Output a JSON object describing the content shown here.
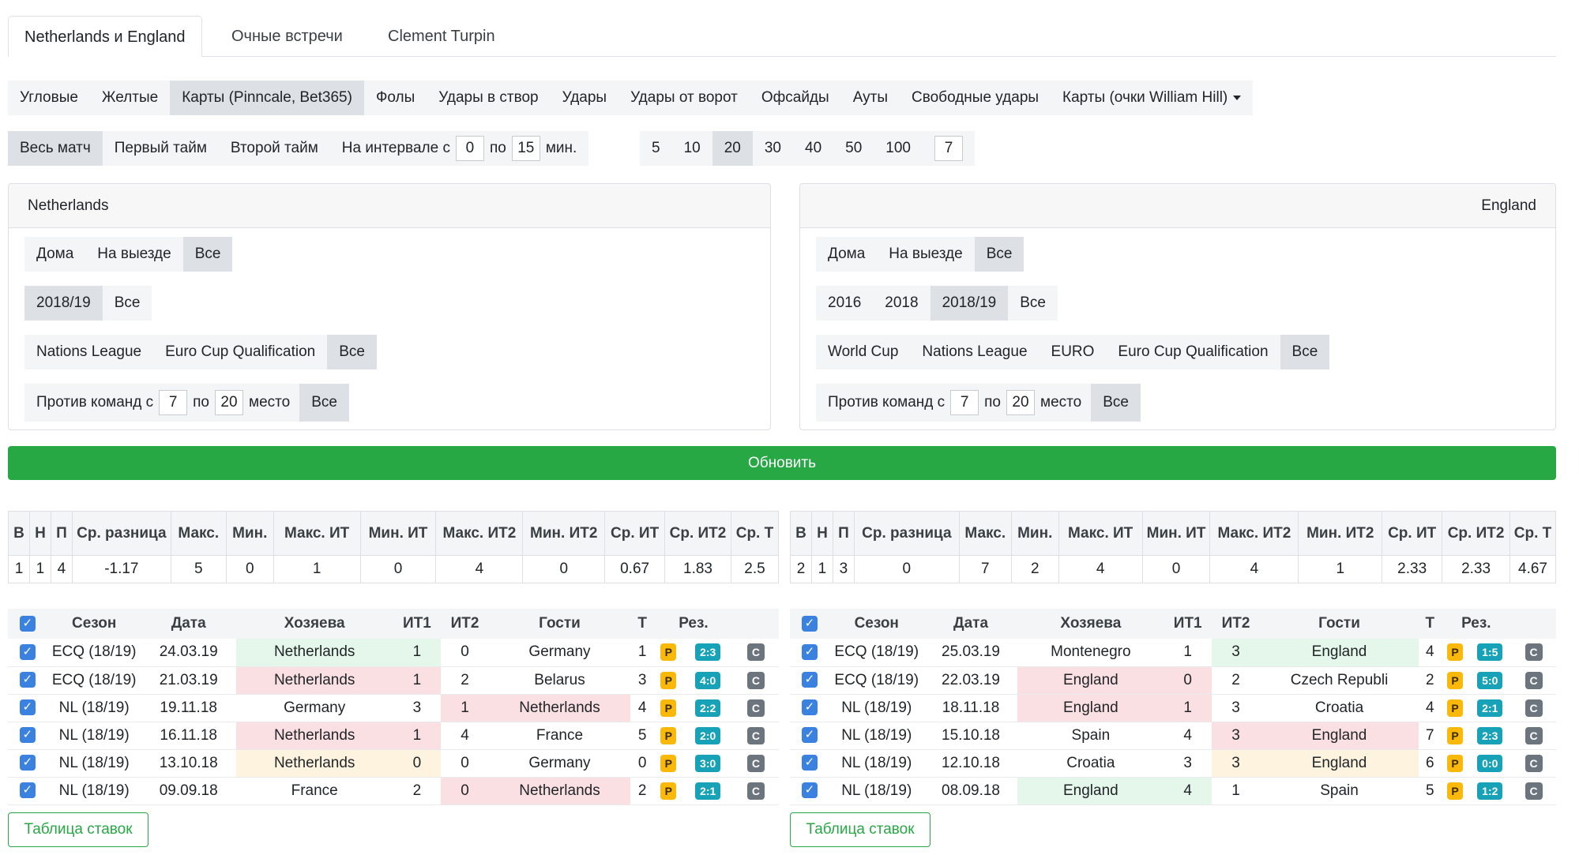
{
  "tabs": [
    "Netherlands и England",
    "Очные встречи",
    "Clement Turpin"
  ],
  "stat_tabs": {
    "items": [
      "Угловые",
      "Желтые",
      "Карты (Pinncale, Bet365)",
      "Фолы",
      "Удары в створ",
      "Удары",
      "Удары от ворот",
      "Офсайды",
      "Ауты",
      "Свободные удары"
    ],
    "dropdown": "Карты (очки William Hill)",
    "active": "Карты (Pinncale, Bet365)"
  },
  "period": {
    "whole": "Весь матч",
    "first": "Первый тайм",
    "second": "Второй тайм",
    "interval_label": "На интервале с",
    "from": "0",
    "to_label": "по",
    "to": "15",
    "unit": "мин."
  },
  "last_n": {
    "options": [
      "5",
      "10",
      "20",
      "30",
      "40",
      "50",
      "100"
    ],
    "active": "20",
    "custom": "7"
  },
  "left_panel": {
    "team": "Netherlands",
    "venue": [
      "Дома",
      "На выезде",
      "Все"
    ],
    "seasons": [
      "2018/19",
      "Все"
    ],
    "tournaments": [
      "Nations League",
      "Euro Cup Qualification",
      "Все"
    ],
    "rank_filter": {
      "label": "Против команд с",
      "from": "7",
      "to_label": "по",
      "to": "20",
      "suffix": "место",
      "all": "Все"
    }
  },
  "right_panel": {
    "team": "England",
    "venue": [
      "Дома",
      "На выезде",
      "Все"
    ],
    "seasons": [
      "2016",
      "2018",
      "2018/19",
      "Все"
    ],
    "tournaments": [
      "World Cup",
      "Nations League",
      "EURO",
      "Euro Cup Qualification",
      "Все"
    ],
    "rank_filter": {
      "label": "Против команд с",
      "from": "7",
      "to_label": "по",
      "to": "20",
      "suffix": "место",
      "all": "Все"
    }
  },
  "update_button": "Обновить",
  "stats_headers": [
    "В",
    "Н",
    "П",
    "Ср. разница",
    "Макс.",
    "Мин.",
    "Макс. ИТ",
    "Мин. ИТ",
    "Макс. ИТ2",
    "Мин. ИТ2",
    "Ср. ИТ",
    "Ср. ИТ2",
    "Ср. Т"
  ],
  "left_stats": [
    "1",
    "1",
    "4",
    "-1.17",
    "5",
    "0",
    "1",
    "0",
    "4",
    "0",
    "0.67",
    "1.83",
    "2.5"
  ],
  "right_stats": [
    "2",
    "1",
    "3",
    "0",
    "7",
    "2",
    "4",
    "0",
    "4",
    "1",
    "2.33",
    "2.33",
    "4.67"
  ],
  "match_headers": [
    "Сезон",
    "Дата",
    "Хозяева",
    "ИТ1",
    "ИТ2",
    "Гости",
    "Т",
    "Рез."
  ],
  "badges": {
    "p": "P",
    "c": "C",
    "check": "✓"
  },
  "left_matches": [
    {
      "season": "ECQ (18/19)",
      "date": "24.03.19",
      "home": "Netherlands",
      "it1": "1",
      "it2": "0",
      "away": "Germany",
      "t": "1",
      "res": "2:3"
    },
    {
      "season": "ECQ (18/19)",
      "date": "21.03.19",
      "home": "Netherlands",
      "it1": "1",
      "it2": "2",
      "away": "Belarus",
      "t": "3",
      "res": "4:0"
    },
    {
      "season": "NL (18/19)",
      "date": "19.11.18",
      "home": "Germany",
      "it1": "3",
      "it2": "1",
      "away": "Netherlands",
      "t": "4",
      "res": "2:2"
    },
    {
      "season": "NL (18/19)",
      "date": "16.11.18",
      "home": "Netherlands",
      "it1": "1",
      "it2": "4",
      "away": "France",
      "t": "5",
      "res": "2:0"
    },
    {
      "season": "NL (18/19)",
      "date": "13.10.18",
      "home": "Netherlands",
      "it1": "0",
      "it2": "0",
      "away": "Germany",
      "t": "0",
      "res": "3:0"
    },
    {
      "season": "NL (18/19)",
      "date": "09.09.18",
      "home": "France",
      "it1": "2",
      "it2": "0",
      "away": "Netherlands",
      "t": "2",
      "res": "2:1"
    }
  ],
  "right_matches": [
    {
      "season": "ECQ (18/19)",
      "date": "25.03.19",
      "home": "Montenegro",
      "it1": "1",
      "it2": "3",
      "away": "England",
      "t": "4",
      "res": "1:5"
    },
    {
      "season": "ECQ (18/19)",
      "date": "22.03.19",
      "home": "England",
      "it1": "0",
      "it2": "2",
      "away": "Czech Republi",
      "t": "2",
      "res": "5:0"
    },
    {
      "season": "NL (18/19)",
      "date": "18.11.18",
      "home": "England",
      "it1": "1",
      "it2": "3",
      "away": "Croatia",
      "t": "4",
      "res": "2:1"
    },
    {
      "season": "NL (18/19)",
      "date": "15.10.18",
      "home": "Spain",
      "it1": "4",
      "it2": "3",
      "away": "England",
      "t": "7",
      "res": "2:3"
    },
    {
      "season": "NL (18/19)",
      "date": "12.10.18",
      "home": "Croatia",
      "it1": "3",
      "it2": "3",
      "away": "England",
      "t": "6",
      "res": "0:0"
    },
    {
      "season": "NL (18/19)",
      "date": "08.09.18",
      "home": "England",
      "it1": "4",
      "it2": "1",
      "away": "Spain",
      "t": "5",
      "res": "1:2"
    }
  ],
  "colors": {
    "win": "#e5f6ea",
    "loss": "#fbe0e3",
    "draw": "#fdf3de",
    "accent": "#28a745"
  },
  "bets_button": "Таблица ставок"
}
